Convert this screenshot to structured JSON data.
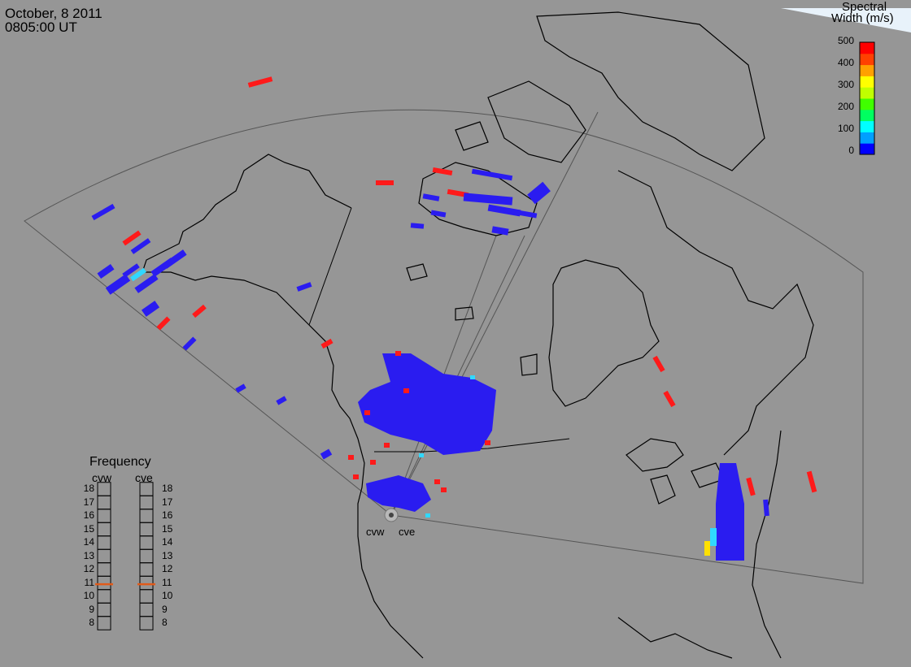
{
  "header": {
    "date": "October, 8 2011",
    "time": "0805:00 UT"
  },
  "colorbar": {
    "title_line1": "Spectral",
    "title_line2": "Width (m/s)",
    "ticks": [
      "500",
      "400",
      "300",
      "200",
      "100",
      "0"
    ],
    "colors": [
      "#0000ff",
      "#00a0ff",
      "#00ffff",
      "#00ff60",
      "#40ff00",
      "#c0ff00",
      "#ffff00",
      "#ffa000",
      "#ff4000",
      "#ff0000"
    ]
  },
  "frequency_panel": {
    "title": "Frequency",
    "radars": [
      {
        "name": "cvw",
        "frequency_mhz": 10.9
      },
      {
        "name": "cve",
        "frequency_mhz": 10.9
      }
    ],
    "scale": [
      "18",
      "17",
      "16",
      "15",
      "14",
      "13",
      "12",
      "11",
      "10",
      "9",
      "8"
    ],
    "marker_color": "#e05a1a"
  },
  "radar_site": {
    "labels": [
      "cvw",
      "cve"
    ]
  },
  "map": {
    "background": "#969696",
    "land_outline": "#000000",
    "fov_outline": "#555555",
    "scatter_colors": {
      "low": "#2a1cf0",
      "mid": "#30d8ff",
      "high": "#ff1a1a",
      "yellow": "#ffe000"
    }
  }
}
